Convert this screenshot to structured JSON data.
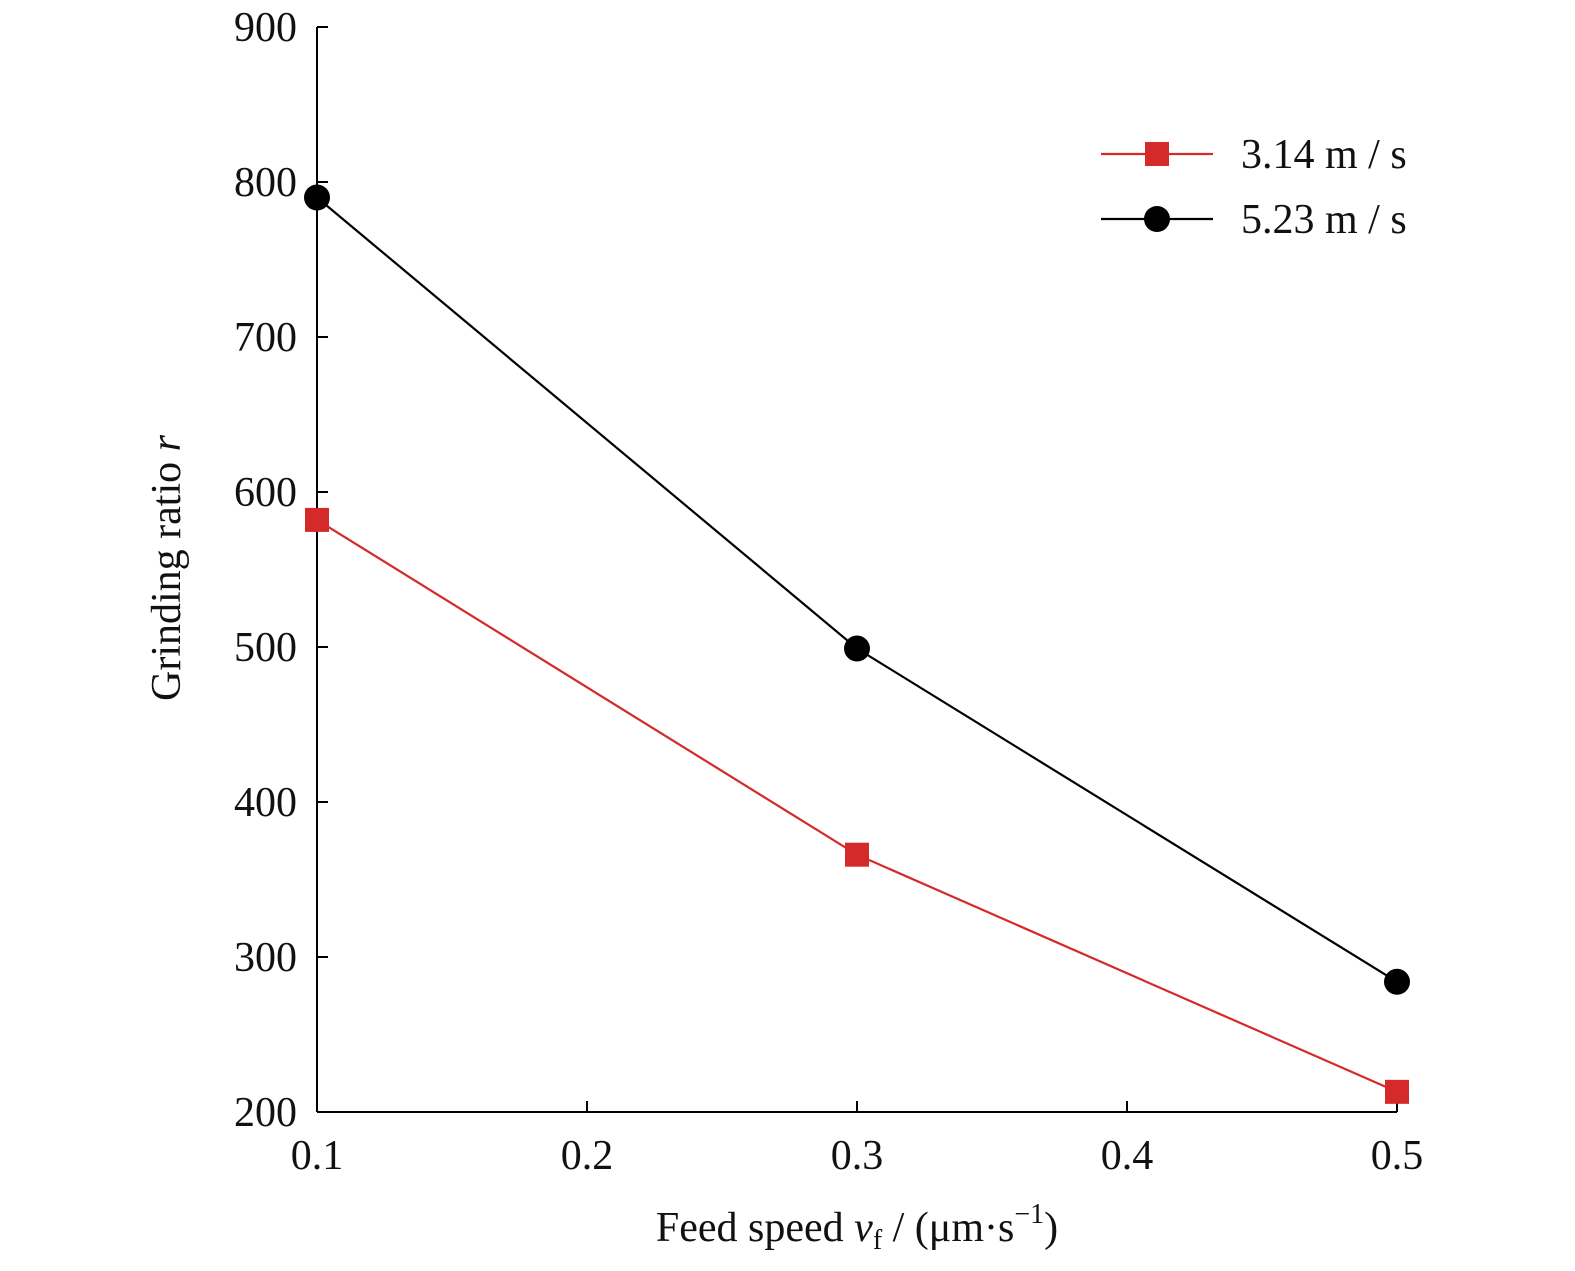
{
  "chart_data": {
    "type": "line",
    "title": "",
    "xlabel": {
      "prefix": "Feed speed ",
      "var": "v",
      "sub": "f",
      "mid": " / (μm·s",
      "sup": "−1",
      "suffix": ")"
    },
    "ylabel": {
      "prefix": "Grinding ratio ",
      "var": "r"
    },
    "xlim": [
      0.1,
      0.5
    ],
    "ylim": [
      200,
      900
    ],
    "xticks": [
      0.1,
      0.2,
      0.3,
      0.4,
      0.5
    ],
    "xtick_labels": [
      "0.1",
      "0.2",
      "0.3",
      "0.4",
      "0.5"
    ],
    "yticks": [
      200,
      300,
      400,
      500,
      600,
      700,
      800,
      900
    ],
    "ytick_labels": [
      "200",
      "300",
      "400",
      "500",
      "600",
      "700",
      "800",
      "900"
    ],
    "grid": false,
    "legend_position": "top-right",
    "series": [
      {
        "name": "3.14 m / s",
        "color": "#d42a2a",
        "marker": "square",
        "x": [
          0.1,
          0.3,
          0.5
        ],
        "y": [
          582,
          366,
          213
        ]
      },
      {
        "name": "5.23 m / s",
        "color": "#000000",
        "marker": "circle",
        "x": [
          0.1,
          0.3,
          0.5
        ],
        "y": [
          790,
          499,
          284
        ]
      }
    ]
  }
}
